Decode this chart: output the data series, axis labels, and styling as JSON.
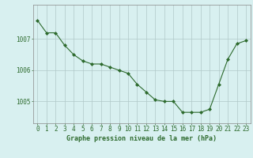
{
  "x": [
    0,
    1,
    2,
    3,
    4,
    5,
    6,
    7,
    8,
    9,
    10,
    11,
    12,
    13,
    14,
    15,
    16,
    17,
    18,
    19,
    20,
    21,
    22,
    23
  ],
  "y": [
    1007.6,
    1007.2,
    1007.2,
    1006.8,
    1006.5,
    1006.3,
    1006.2,
    1006.2,
    1006.1,
    1006.0,
    1005.9,
    1005.55,
    1005.3,
    1005.05,
    1005.0,
    1005.0,
    1004.65,
    1004.65,
    1004.65,
    1004.75,
    1005.55,
    1006.35,
    1006.85,
    1006.95
  ],
  "line_color": "#2d6a2d",
  "marker": "D",
  "marker_size": 2,
  "bg_color": "#d8f0f0",
  "grid_color": "#b0c8c8",
  "ylim_min": 1004.3,
  "ylim_max": 1008.1,
  "yticks": [
    1005,
    1006,
    1007
  ],
  "xticks": [
    0,
    1,
    2,
    3,
    4,
    5,
    6,
    7,
    8,
    9,
    10,
    11,
    12,
    13,
    14,
    15,
    16,
    17,
    18,
    19,
    20,
    21,
    22,
    23
  ],
  "xlabel": "Graphe pression niveau de la mer (hPa)",
  "xlabel_color": "#2d6a2d",
  "xlabel_fontsize": 6.0,
  "tick_fontsize": 5.5,
  "tick_color": "#2d6a2d",
  "spine_color": "#888888"
}
